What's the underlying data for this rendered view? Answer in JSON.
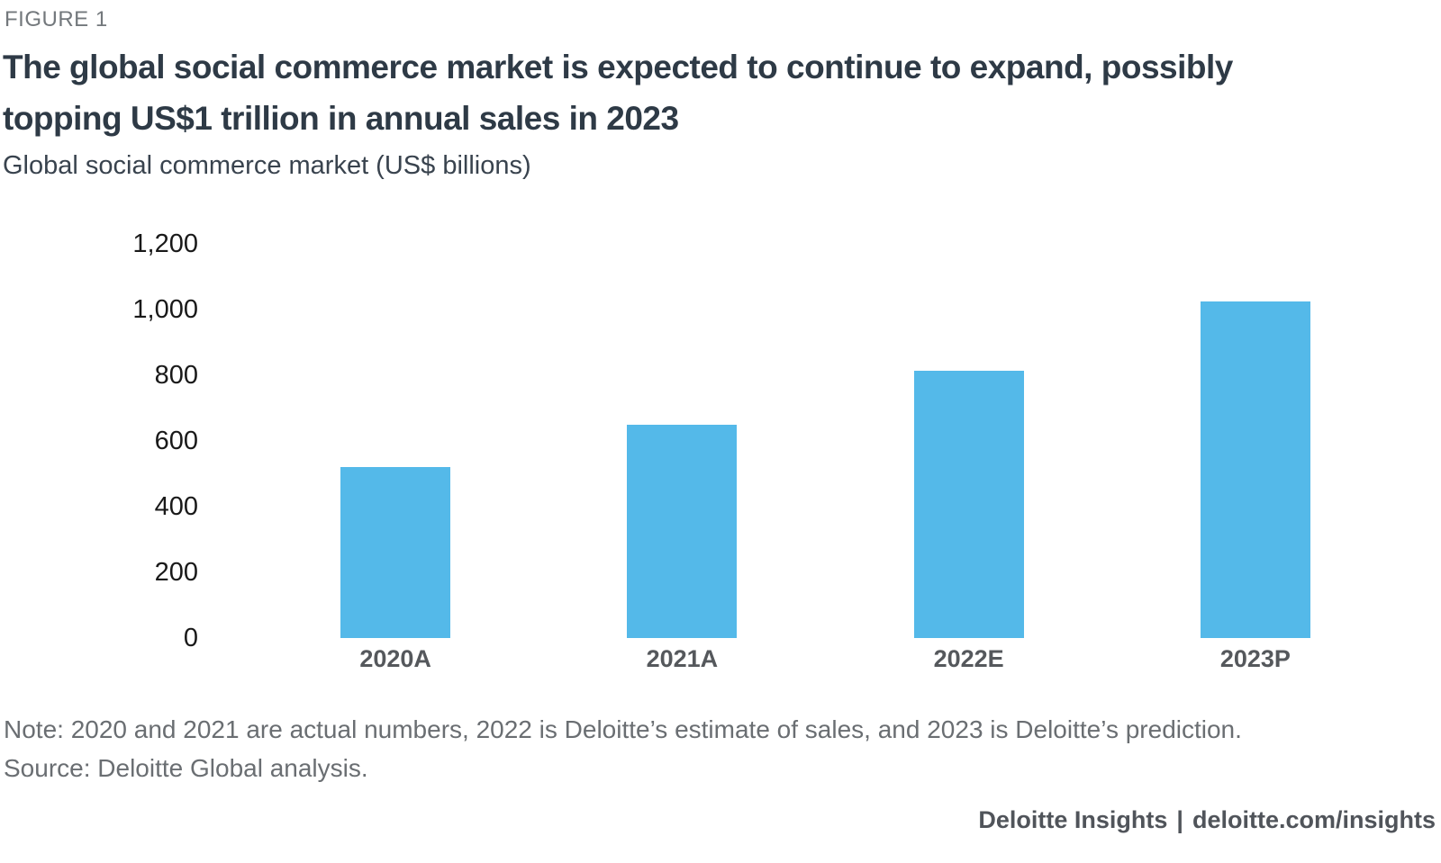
{
  "figure_label": "FIGURE 1",
  "title": {
    "line1": "The global social commerce market is expected to continue to expand, possibly",
    "line2": "topping US$1 trillion in annual sales in 2023"
  },
  "subtitle": "Global social commerce market (US$ billions)",
  "note": "Note: 2020 and 2021 are actual numbers, 2022 is Deloitte’s estimate of sales, and 2023 is Deloitte’s prediction.",
  "source": "Source: Deloitte Global analysis.",
  "footer": {
    "brand": "Deloitte Insights",
    "separator": "|",
    "url": "deloitte.com/insights"
  },
  "colors": {
    "bar": "#54b9e9",
    "title_text": "#2e3a46",
    "figure_label_text": "#73787c",
    "axis_text": "#191919",
    "category_text": "#55585c",
    "note_text": "#6a6e72",
    "footer_text": "#50545a",
    "background": "#ffffff"
  },
  "chart_data": {
    "type": "bar",
    "title": "The global social commerce market is expected to continue to expand, possibly topping US$1 trillion in annual sales in 2023",
    "subtitle": "Global social commerce market (US$ billions)",
    "categories": [
      "2020A",
      "2021A",
      "2022E",
      "2023P"
    ],
    "values": [
      520,
      650,
      815,
      1025
    ],
    "xlabel": "",
    "ylabel": "Global social commerce market (US$ billions)",
    "ylim": [
      0,
      1200
    ],
    "yticks": [
      0,
      200,
      400,
      600,
      800,
      1000,
      1200
    ],
    "ytick_labels": [
      "0",
      "200",
      "400",
      "600",
      "800",
      "1,000",
      "1,200"
    ],
    "grid": false,
    "legend_position": "none",
    "bar_color": "#54b9e9"
  }
}
